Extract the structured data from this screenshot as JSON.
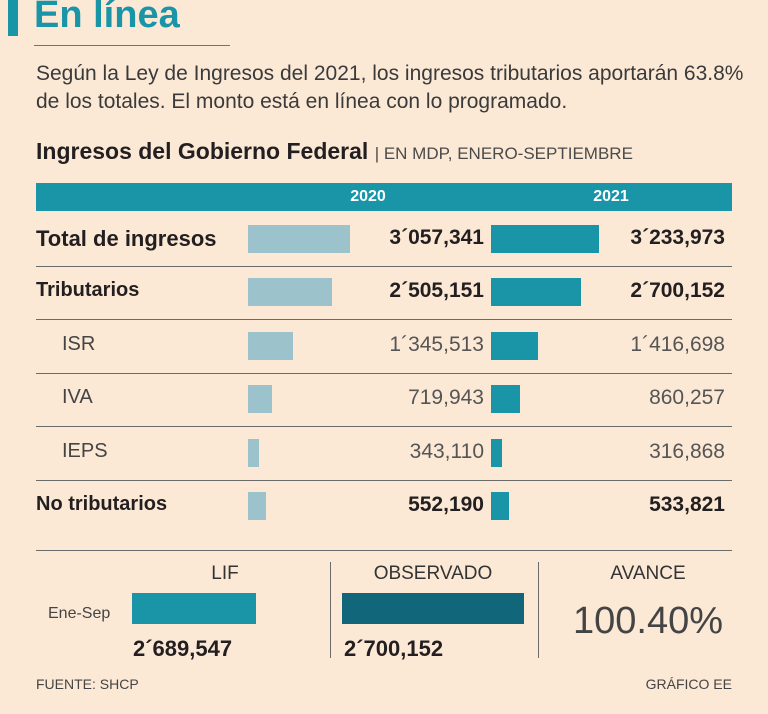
{
  "header": {
    "title": "En línea",
    "subtitle": "Según la Ley de Ingresos del 2021, los ingresos tributarios aportarán 63.8% de los totales. El monto está en línea con lo programado."
  },
  "chart_data": [
    {
      "type": "bar",
      "title": "Ingresos del Gobierno Federal",
      "unit_note": "EN MDP, ENERO-SEPTIEMBRE",
      "categories": [
        "Total de ingresos",
        "Tributarios",
        "ISR",
        "IVA",
        "IEPS",
        "No tributarios"
      ],
      "series": [
        {
          "name": "2020",
          "values": [
            3057341,
            2505151,
            1345513,
            719943,
            343110,
            552190
          ],
          "labels": [
            "3´057,341",
            "2´505,151",
            "1´345,513",
            "719,943",
            "343,110",
            "552,190"
          ]
        },
        {
          "name": "2021",
          "values": [
            3233973,
            2700152,
            1416698,
            860257,
            316868,
            533821
          ],
          "labels": [
            "3´233,973",
            "2´700,152",
            "1´416,698",
            "860,257",
            "316,868",
            "533,821"
          ]
        }
      ]
    },
    {
      "type": "bar",
      "categories": [
        "LIF",
        "OBSERVADO"
      ],
      "row_label": "Ene-Sep",
      "values": [
        2689547,
        2700152
      ],
      "labels": [
        "2´689,547",
        "2´700,152"
      ]
    }
  ],
  "summary": {
    "avance_label": "AVANCE",
    "avance_value": "100.40%"
  },
  "footer": {
    "source": "FUENTE: SHCP",
    "credit": "GRÁFICO EE"
  },
  "colors": {
    "accent": "#1a95a8",
    "bar_2020": "#9cc3cc",
    "bar_observado": "#11667a",
    "background": "#fbe9d6"
  }
}
